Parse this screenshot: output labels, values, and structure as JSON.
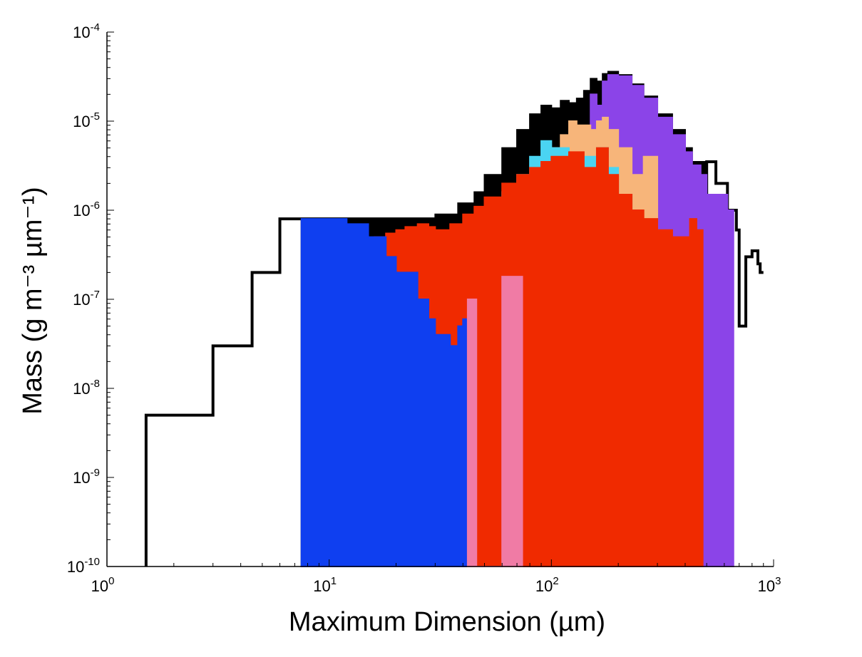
{
  "chart_data": {
    "type": "area",
    "xscale": "log",
    "yscale": "log",
    "xlim": [
      1,
      1000
    ],
    "ylim": [
      1e-10,
      0.0001
    ],
    "xlabel": "Maximum Dimension (µm)",
    "ylabel": "Mass (g m⁻³ µm⁻¹)",
    "x_ticks": [
      {
        "base": "10",
        "exp": "0",
        "value": 1
      },
      {
        "base": "10",
        "exp": "1",
        "value": 10
      },
      {
        "base": "10",
        "exp": "2",
        "value": 100
      },
      {
        "base": "10",
        "exp": "3",
        "value": 1000
      }
    ],
    "y_ticks": [
      {
        "base": "10",
        "exp": "-10",
        "value": 1e-10
      },
      {
        "base": "10",
        "exp": "-9",
        "value": 1e-09
      },
      {
        "base": "10",
        "exp": "-8",
        "value": 1e-08
      },
      {
        "base": "10",
        "exp": "-7",
        "value": 1e-07
      },
      {
        "base": "10",
        "exp": "-6",
        "value": 1e-06
      },
      {
        "base": "10",
        "exp": "-5",
        "value": 1e-05
      },
      {
        "base": "10",
        "exp": "-4",
        "value": 0.0001
      }
    ],
    "grid": false,
    "legend": "none",
    "series": [
      {
        "color": "#000000",
        "style": "filled",
        "x": [
          7.5,
          15,
          23,
          30,
          38,
          45,
          50,
          60,
          70,
          80,
          90,
          100,
          110,
          120,
          130,
          140,
          150,
          160,
          170,
          180,
          200,
          230,
          260,
          300,
          350,
          400,
          430,
          500
        ],
        "y": [
          8e-07,
          8e-07,
          8e-07,
          9e-07,
          1.2e-06,
          1.6e-06,
          2.5e-06,
          5e-06,
          8e-06,
          1.2e-05,
          1.5e-05,
          1.4e-05,
          1.7e-05,
          1.6e-05,
          1.8e-05,
          2.2e-05,
          3e-05,
          2.8e-05,
          3.4e-05,
          3.6e-05,
          3.3e-05,
          2.6e-05,
          1.9e-05,
          1.2e-05,
          8e-06,
          5e-06,
          3.5e-06,
          0
        ]
      },
      {
        "color": "#000000",
        "style": "line",
        "x": [
          1.5,
          3,
          4.5,
          6,
          7.5,
          500,
          550,
          620,
          680,
          700,
          750,
          800,
          850,
          870,
          900
        ],
        "y": [
          5e-09,
          3e-08,
          2e-07,
          8e-07,
          8e-07,
          3.5e-06,
          2e-06,
          1e-06,
          6e-07,
          5e-08,
          3e-07,
          3.5e-07,
          2.5e-07,
          2e-07,
          2e-07
        ]
      },
      {
        "color": "#8B44E8",
        "style": "filled",
        "x": [
          100,
          150,
          160,
          170,
          180,
          200,
          230,
          260,
          300,
          350,
          400,
          430,
          470,
          500,
          620,
          660
        ],
        "y": [
          5e-06,
          2e-05,
          1.5e-05,
          2.8e-05,
          3.3e-05,
          3.2e-05,
          2.5e-05,
          1.8e-05,
          1.1e-05,
          7e-06,
          4.5e-06,
          3.2e-06,
          2.5e-06,
          1.5e-06,
          1e-06,
          0
        ]
      },
      {
        "color": "#F7B57A",
        "style": "filled",
        "x": [
          95,
          110,
          120,
          130,
          150,
          160,
          170,
          180,
          200,
          230,
          260,
          300
        ],
        "y": [
          5e-06,
          7e-06,
          1e-05,
          9e-06,
          8e-06,
          1e-05,
          1.1e-05,
          8e-06,
          5e-06,
          2.5e-06,
          4e-06,
          0
        ]
      },
      {
        "color": "#4AD4F2",
        "style": "filled",
        "x": [
          15,
          20,
          25,
          30,
          35,
          40,
          45,
          50,
          55,
          60,
          70,
          80,
          90,
          100,
          120,
          140,
          160,
          180,
          200,
          230,
          260,
          300
        ],
        "y": [
          2e-09,
          1.5e-08,
          5e-08,
          1e-07,
          1.5e-07,
          2.5e-07,
          5e-07,
          8e-07,
          1e-06,
          1.6e-06,
          2.5e-06,
          4e-06,
          6e-06,
          5e-06,
          3e-06,
          4e-06,
          5e-06,
          3e-06,
          1.5e-06,
          8e-07,
          5e-07,
          0
        ]
      },
      {
        "color": "#F02A00",
        "style": "filled",
        "x": [
          10,
          12,
          14,
          16,
          18,
          20,
          22,
          25,
          28,
          30,
          35,
          40,
          45,
          50,
          60,
          70,
          80,
          90,
          100,
          120,
          140,
          160,
          180,
          200,
          230,
          260,
          300,
          350,
          420,
          450,
          480
        ],
        "y": [
          3e-07,
          3.5e-07,
          4.5e-07,
          5e-07,
          5.5e-07,
          6e-07,
          6.5e-07,
          7e-07,
          6.5e-07,
          6e-07,
          7e-07,
          9e-07,
          1.1e-06,
          1.4e-06,
          2e-06,
          2.5e-06,
          3e-06,
          3.5e-06,
          4e-06,
          4.5e-06,
          3e-06,
          5e-06,
          2.5e-06,
          1.5e-06,
          1e-06,
          8e-07,
          6e-07,
          5e-07,
          8e-07,
          6e-07,
          0
        ]
      },
      {
        "color": "#0F3FF0",
        "style": "filled",
        "x": [
          7.5,
          10,
          12,
          15,
          18,
          20,
          25,
          28,
          30,
          35,
          38,
          40,
          45
        ],
        "y": [
          8e-07,
          8e-07,
          7e-07,
          5e-07,
          3e-07,
          2e-07,
          1e-07,
          6e-08,
          4e-08,
          3e-08,
          5e-08,
          6e-08,
          0
        ]
      },
      {
        "color": "#F07BA5",
        "style": "filled",
        "x": [
          42,
          46,
          60,
          74
        ],
        "y": [
          1e-07,
          0,
          1.8e-07,
          0
        ]
      }
    ]
  }
}
